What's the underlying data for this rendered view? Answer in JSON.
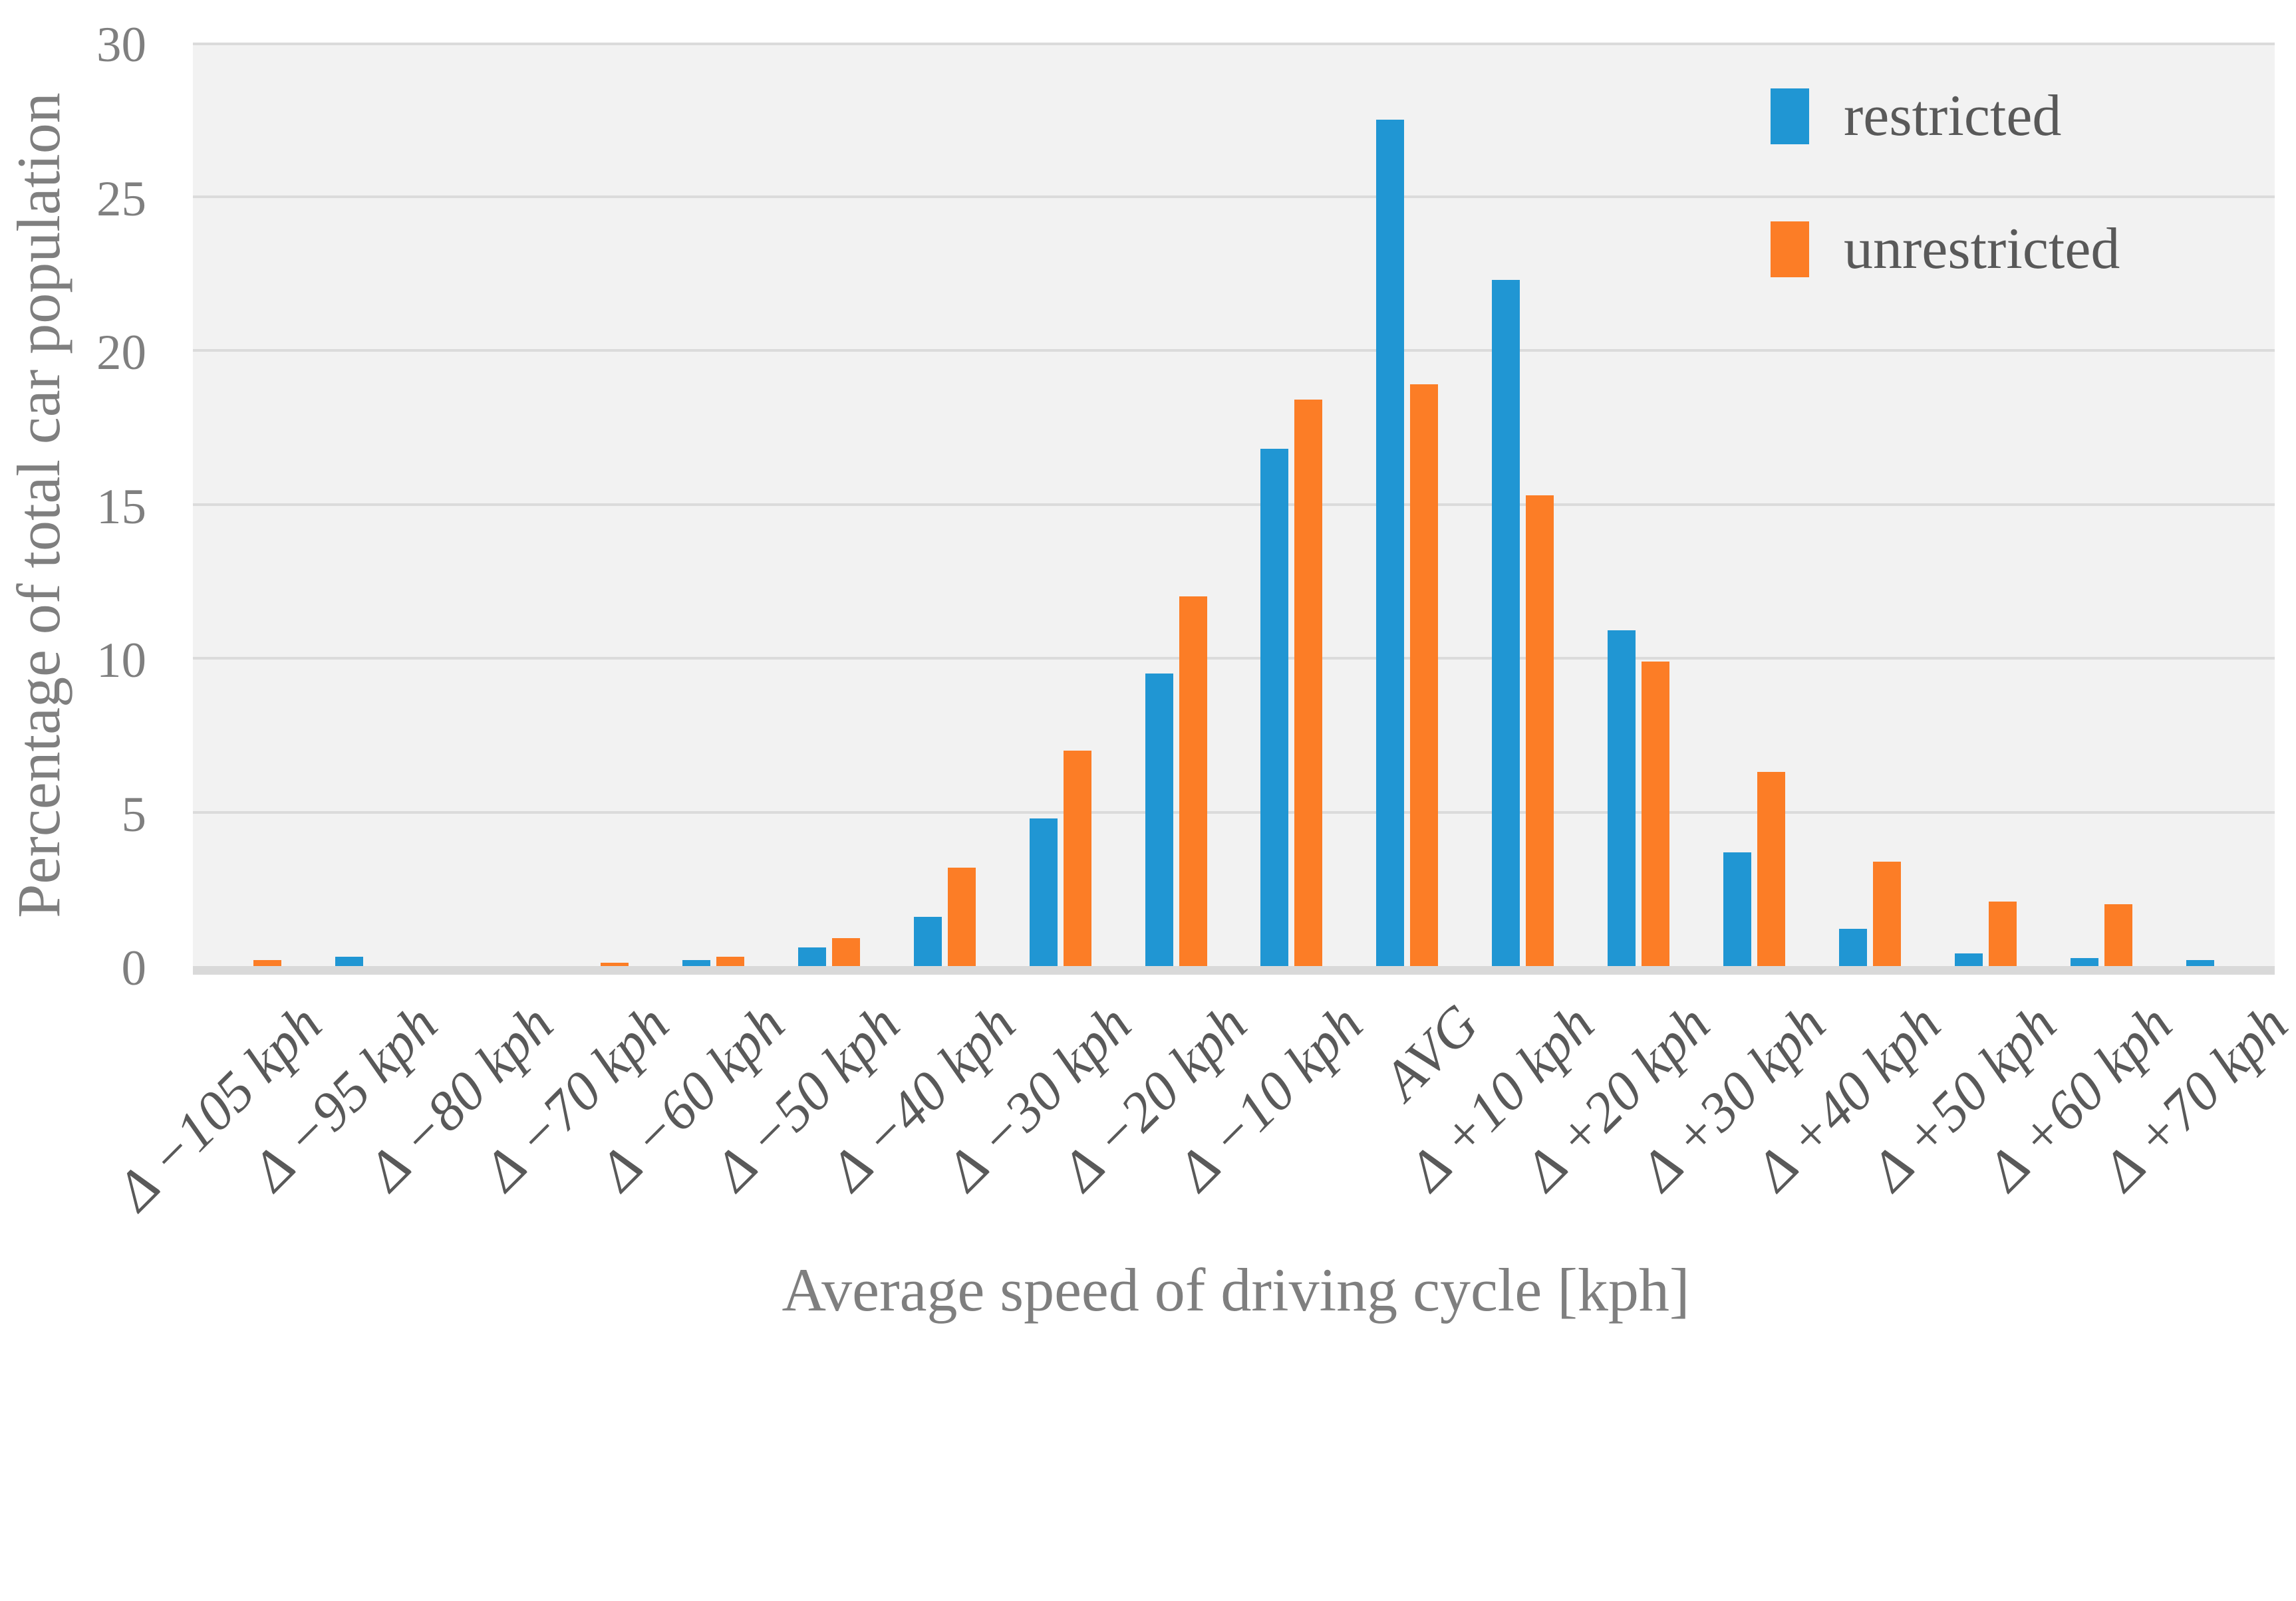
{
  "chart_data": {
    "type": "bar",
    "title": "",
    "xlabel": "Average speed of driving cycle [kph]",
    "ylabel": "Percentage of total car population",
    "ylim": [
      0,
      30
    ],
    "yticks": [
      0,
      5,
      10,
      15,
      20,
      25,
      30
    ],
    "grid": true,
    "legend_position": "top-right-inside",
    "plot_background": "#F2F2F2",
    "gridline_color": "#DBDBDB",
    "axis_line_color": "#D9D9D9",
    "tick_text_color": "#7F7F7F",
    "category_text_color": "#595959",
    "categories": [
      "Δ −105 kph",
      "Δ −95 kph",
      "Δ −80 kph",
      "Δ −70 kph",
      "Δ −60 kph",
      "Δ −50 kph",
      "Δ −40 kph",
      "Δ −30 kph",
      "Δ −20 kph",
      "Δ −10 kph",
      "AVG",
      "Δ +10 kph",
      "Δ +20 kph",
      "Δ +30 kph",
      "Δ +40 kph",
      "Δ +50 kph",
      "Δ +60 kph",
      "Δ +70 kph"
    ],
    "series": [
      {
        "name": "restricted",
        "color": "#2096D3",
        "values": [
          0,
          0.3,
          0,
          0,
          0.2,
          0.6,
          1.6,
          4.8,
          9.5,
          16.8,
          27.5,
          22.3,
          10.9,
          3.7,
          1.2,
          0.4,
          0.25,
          0.2
        ]
      },
      {
        "name": "unrestricted",
        "color": "#FC7D26",
        "values": [
          0.2,
          0,
          0,
          0.1,
          0.3,
          0.9,
          3.2,
          7.0,
          12.0,
          18.4,
          18.9,
          15.3,
          9.9,
          6.3,
          3.4,
          2.1,
          2.0,
          0
        ]
      }
    ]
  }
}
